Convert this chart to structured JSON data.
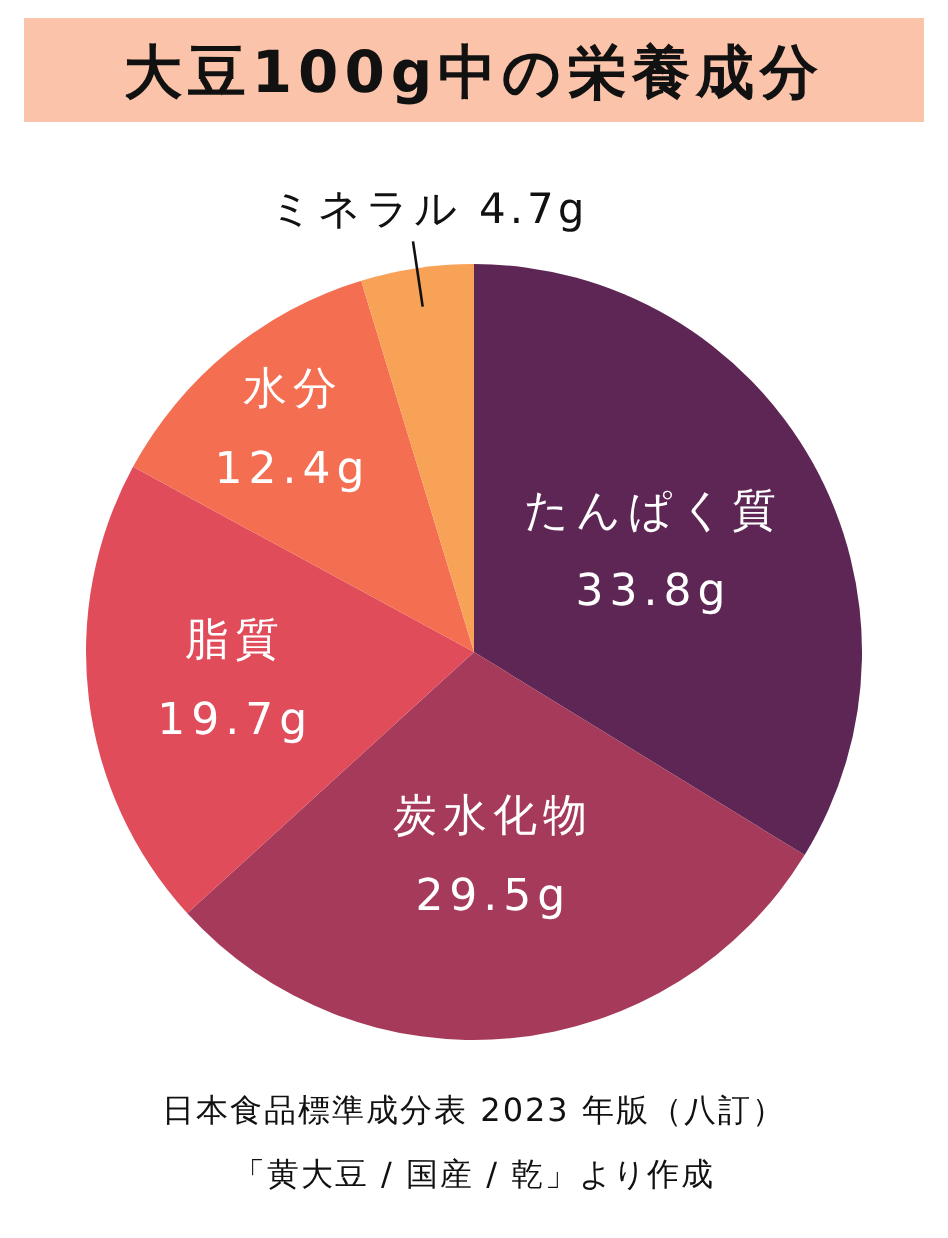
{
  "chart_data": {
    "type": "pie",
    "title": "大豆100g中の栄養成分",
    "categories": [
      "たんぱく質",
      "炭水化物",
      "脂質",
      "水分",
      "ミネラル"
    ],
    "values": [
      33.8,
      29.5,
      19.7,
      12.4,
      4.7
    ],
    "value_labels": [
      "33.8g",
      "29.5g",
      "19.7g",
      "12.4g",
      "4.7g"
    ],
    "colors": [
      "#5e2654",
      "#a63a5a",
      "#e04c5a",
      "#f46e52",
      "#f8a257"
    ],
    "annotations": [
      "日本食品標準成分表 2023 年版（八訂）",
      "「黄大豆 / 国産 / 乾」より作成"
    ]
  }
}
